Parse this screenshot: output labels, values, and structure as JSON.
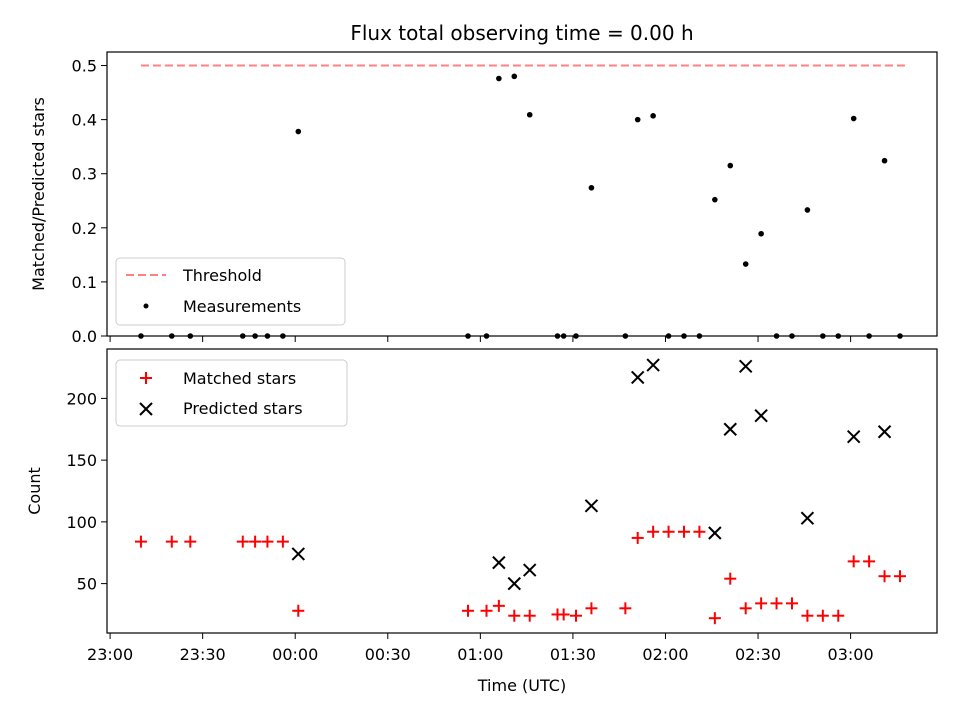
{
  "chart_data": [
    {
      "type": "scatter",
      "title": "Flux total observing time = 0.00 h",
      "xlabel": "",
      "ylabel": "Matched/Predicted stars",
      "ylim": [
        0,
        0.525
      ],
      "yticks": [
        "0.0",
        "0.1",
        "0.2",
        "0.3",
        "0.4",
        "0.5"
      ],
      "threshold": {
        "name": "Threshold",
        "value": 0.5,
        "x_range": [
          "23:10",
          "03:18"
        ],
        "color": "#ff8080",
        "style": "dashed"
      },
      "legend": {
        "placement": "lower-left",
        "entries": [
          "Threshold",
          "Measurements"
        ]
      },
      "series": [
        {
          "name": "Measurements",
          "color": "#000000",
          "marker": "dot",
          "points": [
            [
              "23:10",
              0.0
            ],
            [
              "23:20",
              0.0
            ],
            [
              "23:26",
              0.0
            ],
            [
              "23:43",
              0.0
            ],
            [
              "23:47",
              0.0
            ],
            [
              "23:51",
              0.0
            ],
            [
              "23:56",
              0.0
            ],
            [
              "00:01",
              0.378
            ],
            [
              "00:56",
              0.0
            ],
            [
              "01:02",
              0.0
            ],
            [
              "01:06",
              0.476
            ],
            [
              "01:11",
              0.48
            ],
            [
              "01:16",
              0.409
            ],
            [
              "01:25",
              0.0
            ],
            [
              "01:27",
              0.0
            ],
            [
              "01:31",
              0.0
            ],
            [
              "01:36",
              0.274
            ],
            [
              "01:47",
              0.0
            ],
            [
              "01:51",
              0.4
            ],
            [
              "01:56",
              0.407
            ],
            [
              "02:01",
              0.0
            ],
            [
              "02:06",
              0.0
            ],
            [
              "02:11",
              0.0
            ],
            [
              "02:16",
              0.252
            ],
            [
              "02:21",
              0.315
            ],
            [
              "02:26",
              0.133
            ],
            [
              "02:31",
              0.189
            ],
            [
              "02:36",
              0.0
            ],
            [
              "02:41",
              0.0
            ],
            [
              "02:46",
              0.233
            ],
            [
              "02:51",
              0.0
            ],
            [
              "02:56",
              0.0
            ],
            [
              "03:01",
              0.402
            ],
            [
              "03:06",
              0.0
            ],
            [
              "03:11",
              0.324
            ],
            [
              "03:16",
              0.0
            ]
          ]
        }
      ]
    },
    {
      "type": "scatter",
      "title": "",
      "xlabel": "Time (UTC)",
      "ylabel": "Count",
      "ylim": [
        10,
        240
      ],
      "yticks": [
        "50",
        "100",
        "150",
        "200"
      ],
      "xlim": [
        "22:59",
        "03:28"
      ],
      "xticks": [
        "23:00",
        "23:30",
        "00:00",
        "00:30",
        "01:00",
        "01:30",
        "02:00",
        "02:30",
        "03:00"
      ],
      "legend": {
        "placement": "upper-left",
        "entries": [
          "Matched stars",
          "Predicted stars"
        ]
      },
      "series": [
        {
          "name": "Matched stars",
          "color": "#ff0000",
          "marker": "plus",
          "points": [
            [
              "23:10",
              84
            ],
            [
              "23:20",
              84
            ],
            [
              "23:26",
              84
            ],
            [
              "23:43",
              84
            ],
            [
              "23:47",
              84
            ],
            [
              "23:51",
              84
            ],
            [
              "23:56",
              84
            ],
            [
              "00:01",
              28
            ],
            [
              "00:56",
              28
            ],
            [
              "01:02",
              28
            ],
            [
              "01:06",
              32
            ],
            [
              "01:11",
              24
            ],
            [
              "01:16",
              24
            ],
            [
              "01:25",
              25
            ],
            [
              "01:27",
              25
            ],
            [
              "01:31",
              24
            ],
            [
              "01:36",
              30
            ],
            [
              "01:47",
              30
            ],
            [
              "01:51",
              87
            ],
            [
              "01:56",
              92
            ],
            [
              "02:01",
              92
            ],
            [
              "02:06",
              92
            ],
            [
              "02:11",
              92
            ],
            [
              "02:16",
              22
            ],
            [
              "02:21",
              54
            ],
            [
              "02:26",
              30
            ],
            [
              "02:31",
              34
            ],
            [
              "02:36",
              34
            ],
            [
              "02:41",
              34
            ],
            [
              "02:46",
              24
            ],
            [
              "02:51",
              24
            ],
            [
              "02:56",
              24
            ],
            [
              "03:01",
              68
            ],
            [
              "03:06",
              68
            ],
            [
              "03:11",
              56
            ],
            [
              "03:16",
              56
            ]
          ]
        },
        {
          "name": "Predicted stars",
          "color": "#000000",
          "marker": "x",
          "points": [
            [
              "00:01",
              74
            ],
            [
              "01:06",
              67
            ],
            [
              "01:11",
              50
            ],
            [
              "01:16",
              61
            ],
            [
              "01:36",
              113
            ],
            [
              "01:51",
              217
            ],
            [
              "01:56",
              227
            ],
            [
              "02:16",
              91
            ],
            [
              "02:21",
              175
            ],
            [
              "02:26",
              226
            ],
            [
              "02:31",
              186
            ],
            [
              "02:46",
              103
            ],
            [
              "03:01",
              169
            ],
            [
              "03:11",
              173
            ]
          ]
        }
      ]
    }
  ]
}
